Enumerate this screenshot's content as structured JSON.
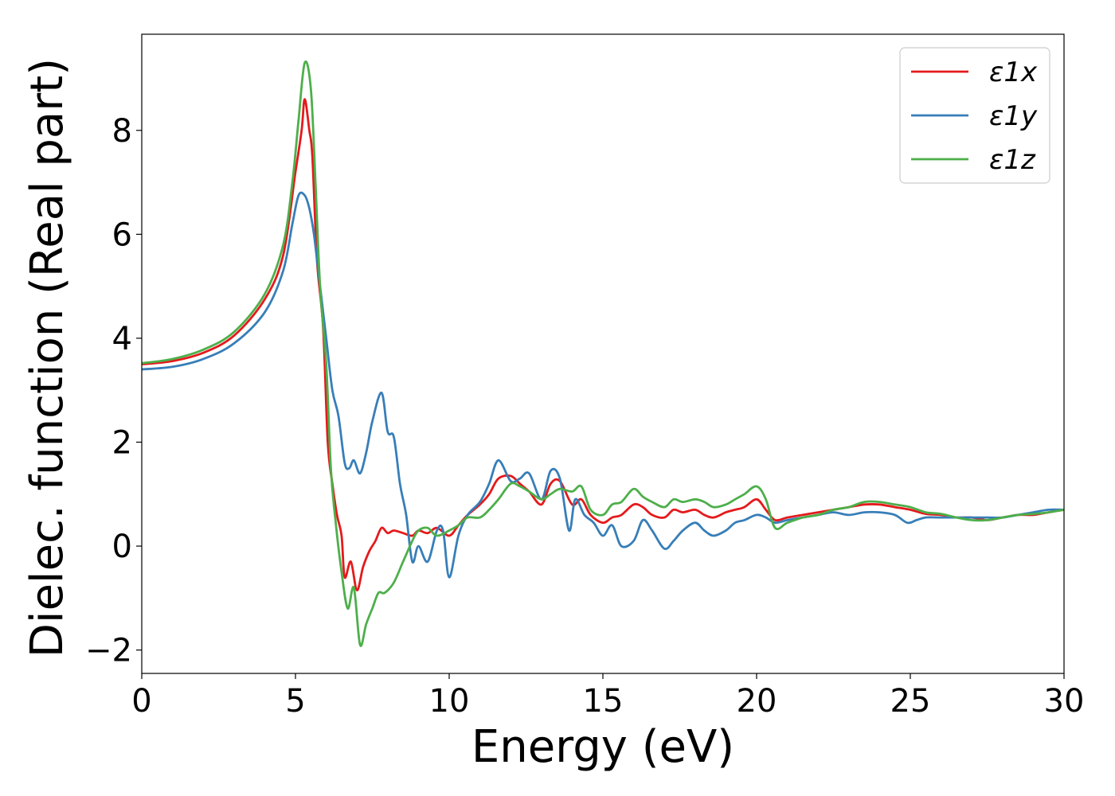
{
  "chart_data": {
    "type": "line",
    "title": "",
    "xlabel": "Energy (eV)",
    "ylabel": "Dielec. function (Real part)",
    "xlim": [
      0,
      30
    ],
    "ylim": [
      -2.45,
      9.85
    ],
    "x_ticks": [
      0,
      5,
      10,
      15,
      20,
      25,
      30
    ],
    "x_tick_labels": [
      "0",
      "5",
      "10",
      "15",
      "20",
      "25",
      "30"
    ],
    "y_ticks": [
      -2,
      0,
      2,
      4,
      6,
      8
    ],
    "y_tick_labels": [
      "−2",
      "0",
      "2",
      "4",
      "6",
      "8"
    ],
    "grid": false,
    "legend_position": "top-right",
    "series": [
      {
        "name": "ε1x",
        "color": "#e41a1c",
        "points": [
          [
            0,
            3.5
          ],
          [
            1,
            3.56
          ],
          [
            2,
            3.72
          ],
          [
            3,
            4.05
          ],
          [
            4,
            4.75
          ],
          [
            4.6,
            5.6
          ],
          [
            5.0,
            7.2
          ],
          [
            5.2,
            8.0
          ],
          [
            5.3,
            8.6
          ],
          [
            5.45,
            8.0
          ],
          [
            5.55,
            7.5
          ],
          [
            5.7,
            5.5
          ],
          [
            5.9,
            4.2
          ],
          [
            6.05,
            2.0
          ],
          [
            6.2,
            1.2
          ],
          [
            6.35,
            0.6
          ],
          [
            6.5,
            0.2
          ],
          [
            6.6,
            -0.6
          ],
          [
            6.8,
            -0.3
          ],
          [
            7.0,
            -0.85
          ],
          [
            7.2,
            -0.4
          ],
          [
            7.4,
            -0.1
          ],
          [
            7.6,
            0.1
          ],
          [
            7.8,
            0.35
          ],
          [
            8.0,
            0.25
          ],
          [
            8.2,
            0.3
          ],
          [
            8.5,
            0.25
          ],
          [
            8.8,
            0.2
          ],
          [
            9.0,
            0.3
          ],
          [
            9.3,
            0.25
          ],
          [
            9.6,
            0.35
          ],
          [
            10.0,
            0.2
          ],
          [
            10.3,
            0.4
          ],
          [
            10.6,
            0.6
          ],
          [
            11.0,
            0.8
          ],
          [
            11.3,
            1.0
          ],
          [
            11.6,
            1.3
          ],
          [
            12.0,
            1.35
          ],
          [
            12.3,
            1.2
          ],
          [
            12.6,
            1.05
          ],
          [
            13.0,
            0.8
          ],
          [
            13.3,
            1.2
          ],
          [
            13.6,
            1.25
          ],
          [
            14.0,
            0.8
          ],
          [
            14.3,
            0.9
          ],
          [
            14.6,
            0.6
          ],
          [
            15.0,
            0.45
          ],
          [
            15.3,
            0.55
          ],
          [
            15.6,
            0.6
          ],
          [
            16.0,
            0.8
          ],
          [
            16.3,
            0.75
          ],
          [
            16.6,
            0.6
          ],
          [
            17.0,
            0.55
          ],
          [
            17.3,
            0.7
          ],
          [
            17.6,
            0.65
          ],
          [
            18.0,
            0.7
          ],
          [
            18.3,
            0.6
          ],
          [
            18.6,
            0.55
          ],
          [
            19.0,
            0.65
          ],
          [
            19.3,
            0.7
          ],
          [
            19.6,
            0.75
          ],
          [
            20.0,
            0.9
          ],
          [
            20.3,
            0.7
          ],
          [
            20.6,
            0.5
          ],
          [
            21.0,
            0.55
          ],
          [
            21.5,
            0.6
          ],
          [
            22.0,
            0.65
          ],
          [
            22.5,
            0.7
          ],
          [
            23.0,
            0.75
          ],
          [
            23.5,
            0.8
          ],
          [
            24.0,
            0.8
          ],
          [
            24.5,
            0.75
          ],
          [
            25.0,
            0.7
          ],
          [
            25.5,
            0.62
          ],
          [
            26.0,
            0.6
          ],
          [
            26.5,
            0.55
          ],
          [
            27.0,
            0.55
          ],
          [
            27.5,
            0.5
          ],
          [
            28.0,
            0.55
          ],
          [
            28.5,
            0.6
          ],
          [
            29.0,
            0.6
          ],
          [
            29.5,
            0.65
          ],
          [
            30.0,
            0.7
          ]
        ]
      },
      {
        "name": "ε1y",
        "color": "#377eb8",
        "points": [
          [
            0,
            3.4
          ],
          [
            1,
            3.45
          ],
          [
            2,
            3.6
          ],
          [
            3,
            3.9
          ],
          [
            4,
            4.5
          ],
          [
            4.6,
            5.3
          ],
          [
            4.9,
            6.2
          ],
          [
            5.1,
            6.75
          ],
          [
            5.3,
            6.75
          ],
          [
            5.45,
            6.5
          ],
          [
            5.6,
            6.0
          ],
          [
            5.8,
            5.0
          ],
          [
            6.0,
            4.0
          ],
          [
            6.2,
            3.0
          ],
          [
            6.4,
            2.5
          ],
          [
            6.6,
            1.6
          ],
          [
            6.75,
            1.5
          ],
          [
            6.9,
            1.65
          ],
          [
            7.1,
            1.4
          ],
          [
            7.3,
            1.8
          ],
          [
            7.5,
            2.4
          ],
          [
            7.8,
            2.95
          ],
          [
            8.0,
            2.2
          ],
          [
            8.2,
            2.1
          ],
          [
            8.4,
            1.2
          ],
          [
            8.6,
            0.6
          ],
          [
            8.8,
            -0.3
          ],
          [
            9.0,
            0.0
          ],
          [
            9.3,
            -0.3
          ],
          [
            9.6,
            0.3
          ],
          [
            9.8,
            0.3
          ],
          [
            10.0,
            -0.6
          ],
          [
            10.3,
            0.2
          ],
          [
            10.6,
            0.6
          ],
          [
            11.0,
            0.85
          ],
          [
            11.3,
            1.2
          ],
          [
            11.6,
            1.65
          ],
          [
            12.0,
            1.25
          ],
          [
            12.3,
            1.3
          ],
          [
            12.6,
            1.4
          ],
          [
            13.0,
            0.9
          ],
          [
            13.3,
            1.45
          ],
          [
            13.6,
            1.3
          ],
          [
            13.9,
            0.3
          ],
          [
            14.1,
            0.9
          ],
          [
            14.4,
            0.6
          ],
          [
            14.7,
            0.45
          ],
          [
            15.0,
            0.2
          ],
          [
            15.3,
            0.4
          ],
          [
            15.6,
            0.0
          ],
          [
            16.0,
            0.1
          ],
          [
            16.3,
            0.5
          ],
          [
            16.6,
            0.3
          ],
          [
            17.0,
            -0.05
          ],
          [
            17.3,
            0.1
          ],
          [
            17.6,
            0.3
          ],
          [
            18.0,
            0.45
          ],
          [
            18.3,
            0.3
          ],
          [
            18.6,
            0.2
          ],
          [
            19.0,
            0.3
          ],
          [
            19.3,
            0.45
          ],
          [
            19.6,
            0.5
          ],
          [
            20.0,
            0.6
          ],
          [
            20.3,
            0.55
          ],
          [
            20.6,
            0.45
          ],
          [
            21.0,
            0.5
          ],
          [
            21.5,
            0.55
          ],
          [
            22.0,
            0.6
          ],
          [
            22.5,
            0.65
          ],
          [
            23.0,
            0.6
          ],
          [
            23.5,
            0.65
          ],
          [
            24.0,
            0.65
          ],
          [
            24.5,
            0.6
          ],
          [
            24.9,
            0.45
          ],
          [
            25.2,
            0.5
          ],
          [
            25.5,
            0.55
          ],
          [
            26.0,
            0.55
          ],
          [
            26.5,
            0.55
          ],
          [
            27.0,
            0.55
          ],
          [
            27.5,
            0.55
          ],
          [
            28.0,
            0.55
          ],
          [
            28.5,
            0.6
          ],
          [
            29.0,
            0.65
          ],
          [
            29.5,
            0.7
          ],
          [
            30.0,
            0.7
          ]
        ]
      },
      {
        "name": "ε1z",
        "color": "#4daf4a",
        "points": [
          [
            0,
            3.52
          ],
          [
            1,
            3.6
          ],
          [
            2,
            3.78
          ],
          [
            3,
            4.12
          ],
          [
            4,
            4.85
          ],
          [
            4.6,
            5.8
          ],
          [
            4.9,
            7.0
          ],
          [
            5.1,
            8.2
          ],
          [
            5.3,
            9.3
          ],
          [
            5.5,
            8.8
          ],
          [
            5.65,
            7.0
          ],
          [
            5.8,
            5.0
          ],
          [
            6.0,
            3.5
          ],
          [
            6.15,
            1.5
          ],
          [
            6.3,
            0.5
          ],
          [
            6.5,
            -0.5
          ],
          [
            6.7,
            -1.2
          ],
          [
            6.9,
            -0.8
          ],
          [
            7.1,
            -1.9
          ],
          [
            7.3,
            -1.5
          ],
          [
            7.5,
            -1.2
          ],
          [
            7.7,
            -0.9
          ],
          [
            7.9,
            -0.9
          ],
          [
            8.2,
            -0.7
          ],
          [
            8.5,
            -0.3
          ],
          [
            8.8,
            0.1
          ],
          [
            9.0,
            0.3
          ],
          [
            9.3,
            0.35
          ],
          [
            9.6,
            0.2
          ],
          [
            10.0,
            0.3
          ],
          [
            10.3,
            0.4
          ],
          [
            10.6,
            0.55
          ],
          [
            11.0,
            0.55
          ],
          [
            11.3,
            0.7
          ],
          [
            11.6,
            0.9
          ],
          [
            12.0,
            1.2
          ],
          [
            12.3,
            1.15
          ],
          [
            12.6,
            1.05
          ],
          [
            13.0,
            0.9
          ],
          [
            13.3,
            1.0
          ],
          [
            13.6,
            1.1
          ],
          [
            14.0,
            1.05
          ],
          [
            14.3,
            1.15
          ],
          [
            14.6,
            0.7
          ],
          [
            15.0,
            0.6
          ],
          [
            15.3,
            0.8
          ],
          [
            15.6,
            0.85
          ],
          [
            16.0,
            1.1
          ],
          [
            16.3,
            0.95
          ],
          [
            16.6,
            0.85
          ],
          [
            17.0,
            0.75
          ],
          [
            17.3,
            0.9
          ],
          [
            17.6,
            0.85
          ],
          [
            18.0,
            0.9
          ],
          [
            18.3,
            0.85
          ],
          [
            18.6,
            0.75
          ],
          [
            19.0,
            0.8
          ],
          [
            19.3,
            0.9
          ],
          [
            19.6,
            1.0
          ],
          [
            20.0,
            1.15
          ],
          [
            20.3,
            0.9
          ],
          [
            20.6,
            0.35
          ],
          [
            21.0,
            0.45
          ],
          [
            21.5,
            0.55
          ],
          [
            22.0,
            0.6
          ],
          [
            22.5,
            0.7
          ],
          [
            23.0,
            0.75
          ],
          [
            23.5,
            0.85
          ],
          [
            24.0,
            0.85
          ],
          [
            24.5,
            0.8
          ],
          [
            25.0,
            0.75
          ],
          [
            25.5,
            0.65
          ],
          [
            26.0,
            0.62
          ],
          [
            26.5,
            0.55
          ],
          [
            27.0,
            0.5
          ],
          [
            27.5,
            0.5
          ],
          [
            28.0,
            0.55
          ],
          [
            28.5,
            0.6
          ],
          [
            29.0,
            0.62
          ],
          [
            29.5,
            0.65
          ],
          [
            30.0,
            0.7
          ]
        ]
      }
    ]
  }
}
